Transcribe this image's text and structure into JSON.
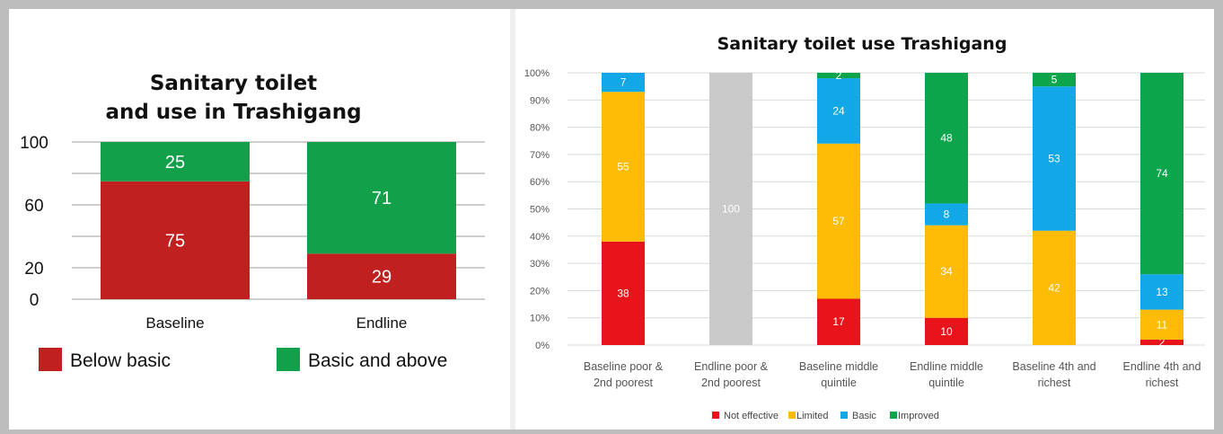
{
  "left_chart": {
    "title_line1": "Sanitary toilet",
    "title_line2": "and use in Trashigang",
    "legend_below": "Below basic",
    "legend_above": "Basic and above"
  },
  "right_chart": {
    "title": "Sanitary toilet use Trashigang",
    "legend_not_effective": "Not effective",
    "legend_limited": "Limited",
    "legend_basic": "Basic",
    "legend_improved": "Improved"
  },
  "colors": {
    "below_basic": "#c0201f",
    "basic_and_above": "#12a04a",
    "not_effective": "#e8131b",
    "limited": "#fcbc06",
    "basic": "#12a7e6",
    "improved": "#0ca54b",
    "endline_poor": "#cacaca"
  },
  "chart_data": [
    {
      "type": "bar",
      "stacked": true,
      "title": "Sanitary toilet and use in Trashigang",
      "categories": [
        "Baseline",
        "Endline"
      ],
      "series": [
        {
          "name": "Below basic",
          "values": [
            75,
            29
          ]
        },
        {
          "name": "Basic and above",
          "values": [
            25,
            71
          ]
        }
      ],
      "yticks": [
        "0",
        "20",
        "60",
        "100"
      ],
      "ylim": [
        0,
        100
      ],
      "grid": true,
      "legend": "bottom"
    },
    {
      "type": "bar",
      "stacked": true,
      "title": "Sanitary toilet use Trashigang",
      "categories": [
        [
          "Baseline poor &",
          "2nd poorest"
        ],
        [
          "Endline poor &",
          "2nd poorest"
        ],
        [
          "Baseline middle",
          "quintile"
        ],
        [
          "Endline middle",
          "quintile"
        ],
        [
          "Baseline 4th and",
          "richest"
        ],
        [
          "Endline 4th and",
          "richest"
        ]
      ],
      "series": [
        {
          "name": "Not effective",
          "values": [
            38,
            null,
            17,
            10,
            null,
            2
          ]
        },
        {
          "name": "Limited",
          "values": [
            55,
            null,
            57,
            34,
            42,
            11
          ]
        },
        {
          "name": "Basic",
          "values": [
            7,
            null,
            24,
            8,
            53,
            13
          ]
        },
        {
          "name": "Improved",
          "values": [
            null,
            null,
            2,
            48,
            5,
            74
          ]
        }
      ],
      "unlabeled_bar": {
        "category_index": 1,
        "value": 100
      },
      "yticks": [
        "0%",
        "10%",
        "20%",
        "30%",
        "40%",
        "50%",
        "60%",
        "70%",
        "80%",
        "90%",
        "100%"
      ],
      "ylim": [
        0,
        100
      ],
      "grid": true,
      "legend": "bottom"
    }
  ]
}
